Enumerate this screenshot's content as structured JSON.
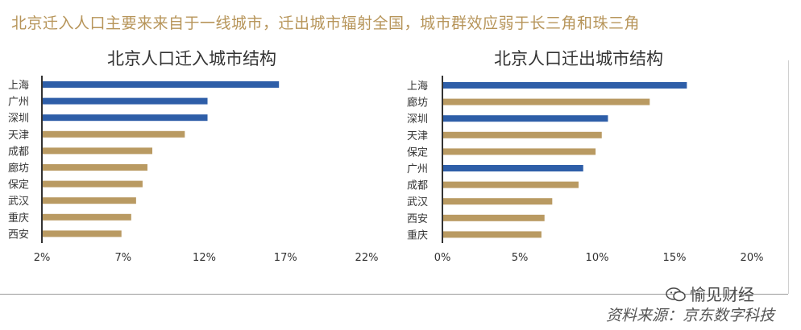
{
  "headline": "北京迁入人口主要来来自于一线城市，迁出城市辐射全国，城市群效应弱于长三角和珠三角",
  "colors": {
    "highlight": "#2e5ea8",
    "regular": "#b99a62",
    "headline": "#b7955a"
  },
  "chart_data": [
    {
      "type": "bar",
      "orientation": "horizontal",
      "title": "北京人口迁入城市结构",
      "categories": [
        "上海",
        "广州",
        "深圳",
        "天津",
        "成都",
        "廊坊",
        "保定",
        "武汉",
        "重庆",
        "西安"
      ],
      "values": [
        16.6,
        12.2,
        12.2,
        10.8,
        8.8,
        8.5,
        8.2,
        7.8,
        7.5,
        6.9
      ],
      "highlight": [
        true,
        true,
        true,
        false,
        false,
        false,
        false,
        false,
        false,
        false
      ],
      "xlim": [
        2,
        22
      ],
      "xticks": [
        "2%",
        "7%",
        "12%",
        "17%",
        "22%"
      ],
      "xlabel": "",
      "ylabel": ""
    },
    {
      "type": "bar",
      "orientation": "horizontal",
      "title": "北京人口迁出城市结构",
      "categories": [
        "上海",
        "廊坊",
        "深圳",
        "天津",
        "保定",
        "广州",
        "成都",
        "武汉",
        "西安",
        "重庆"
      ],
      "values": [
        15.8,
        13.4,
        10.7,
        10.3,
        9.9,
        9.1,
        8.8,
        7.1,
        6.6,
        6.4
      ],
      "highlight": [
        true,
        false,
        true,
        false,
        false,
        true,
        false,
        false,
        false,
        false
      ],
      "xlim": [
        0,
        20
      ],
      "xticks": [
        "0%",
        "5%",
        "10%",
        "15%",
        "20%"
      ],
      "xlabel": "",
      "ylabel": ""
    }
  ],
  "watermark": "愉见财经",
  "source": "资料来源：京东数字科技"
}
